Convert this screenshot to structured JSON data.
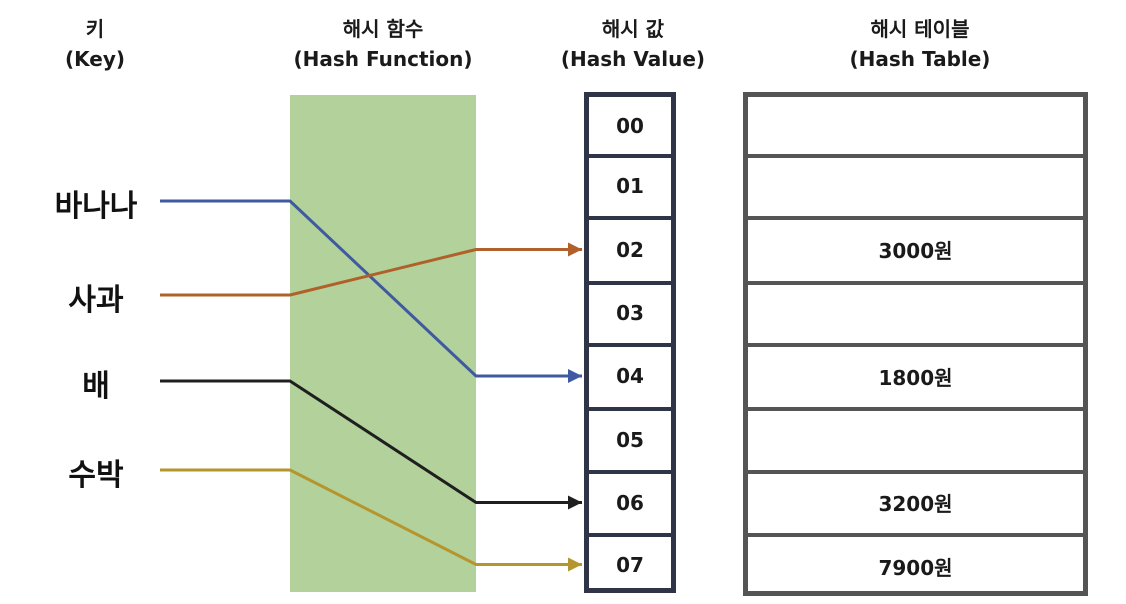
{
  "headers": {
    "key": {
      "title": "키",
      "subtitle": "(Key)"
    },
    "hash_function": {
      "title": "해시 함수",
      "subtitle": "(Hash Function)"
    },
    "hash_value": {
      "title": "해시 값",
      "subtitle": "(Hash Value)"
    },
    "hash_table": {
      "title": "해시 테이블",
      "subtitle": "(Hash Table)"
    }
  },
  "keys": [
    "바나나",
    "사과",
    "배",
    "수박"
  ],
  "hash_values": [
    "00",
    "01",
    "02",
    "03",
    "04",
    "05",
    "06",
    "07"
  ],
  "table_values": [
    "",
    "",
    "3000원",
    "",
    "1800원",
    "",
    "3200원",
    "7900원"
  ],
  "mappings": [
    {
      "key": "바나나",
      "hash": "04",
      "color": "#3f5aa0"
    },
    {
      "key": "사과",
      "hash": "02",
      "color": "#b0612a"
    },
    {
      "key": "배",
      "hash": "06",
      "color": "#1f1f1f"
    },
    {
      "key": "수박",
      "hash": "07",
      "color": "#b5962e"
    }
  ],
  "colors": {
    "hash_function_fill": "#b3d19b",
    "hash_value_border": "#2f3447",
    "hash_table_border": "#555555"
  }
}
